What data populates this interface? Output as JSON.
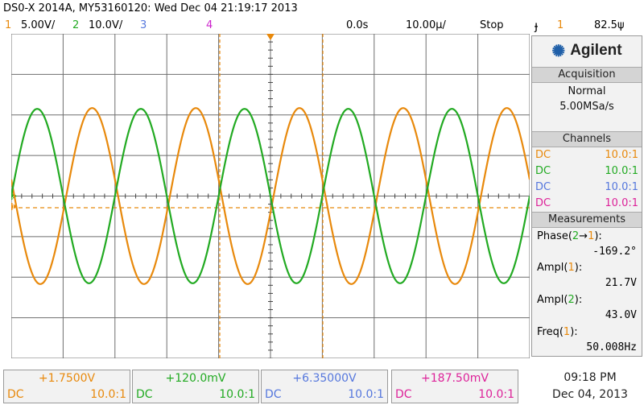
{
  "header": {
    "title": "DS0-X 2014A, MY53160120: Wed Dec 04 21:19:17 2013",
    "ch1_num": "1",
    "ch1_scale": "5.00V/",
    "ch2_num": "2",
    "ch2_scale": "10.0V/",
    "ch3_num": "3",
    "ch4_num": "4",
    "time_delay": "0.0s",
    "time_scale": "10.00µ/",
    "run_state": "Stop",
    "trig_icon": "ɟ",
    "trig_src": "1",
    "trig_level": "82.5ψ"
  },
  "panel": {
    "brand": "Agilent",
    "brand_icon": "starburst-icon",
    "acq_title": "Acquisition",
    "acq_mode": "Normal",
    "acq_rate": "5.00MSa/s",
    "channels_title": "Channels",
    "channels": [
      {
        "coupling": "DC",
        "probe": "10.0:1",
        "color": "#e8890c"
      },
      {
        "coupling": "DC",
        "probe": "10.0:1",
        "color": "#22aa22"
      },
      {
        "coupling": "DC",
        "probe": "10.0:1",
        "color": "#5577dd"
      },
      {
        "coupling": "DC",
        "probe": "10.0:1",
        "color": "#dd2299"
      }
    ],
    "meas_title": "Measurements",
    "meas": [
      {
        "pre": "Phase(",
        "a": "2",
        "arrow": "→",
        "b": "1",
        "post": "):",
        "value": "-169.2°"
      },
      {
        "pre": "Ampl(",
        "a": "1",
        "post": "):",
        "value": "21.7V"
      },
      {
        "pre": "Ampl(",
        "a": "2",
        "post": "):",
        "value": "43.0V"
      },
      {
        "pre": "Freq(",
        "a": "1",
        "post": "):",
        "value": "50.008Hz"
      }
    ]
  },
  "bottom": [
    {
      "offset": "+1.7500V",
      "coupling": "DC",
      "probe": "10.0:1",
      "color": "#e8890c"
    },
    {
      "offset": "+120.0mV",
      "coupling": "DC",
      "probe": "10.0:1",
      "color": "#22aa22"
    },
    {
      "offset": "+6.35000V",
      "coupling": "DC",
      "probe": "10.0:1",
      "color": "#5577dd"
    },
    {
      "offset": "+187.50mV",
      "coupling": "DC",
      "probe": "10.0:1",
      "color": "#dd2299"
    }
  ],
  "clock": {
    "time": "09:18 PM",
    "date": "Dec 04, 2013"
  },
  "waveforms": {
    "ch1": {
      "amplitude_vpp": 21.7,
      "color": "#e8890c",
      "periods_on_screen": 5
    },
    "ch2": {
      "amplitude_vpp": 43.0,
      "color": "#22aa22",
      "periods_on_screen": 5
    },
    "phase_deg": -169.2,
    "ch1_marker": "1",
    "ch2_marker": "2"
  }
}
